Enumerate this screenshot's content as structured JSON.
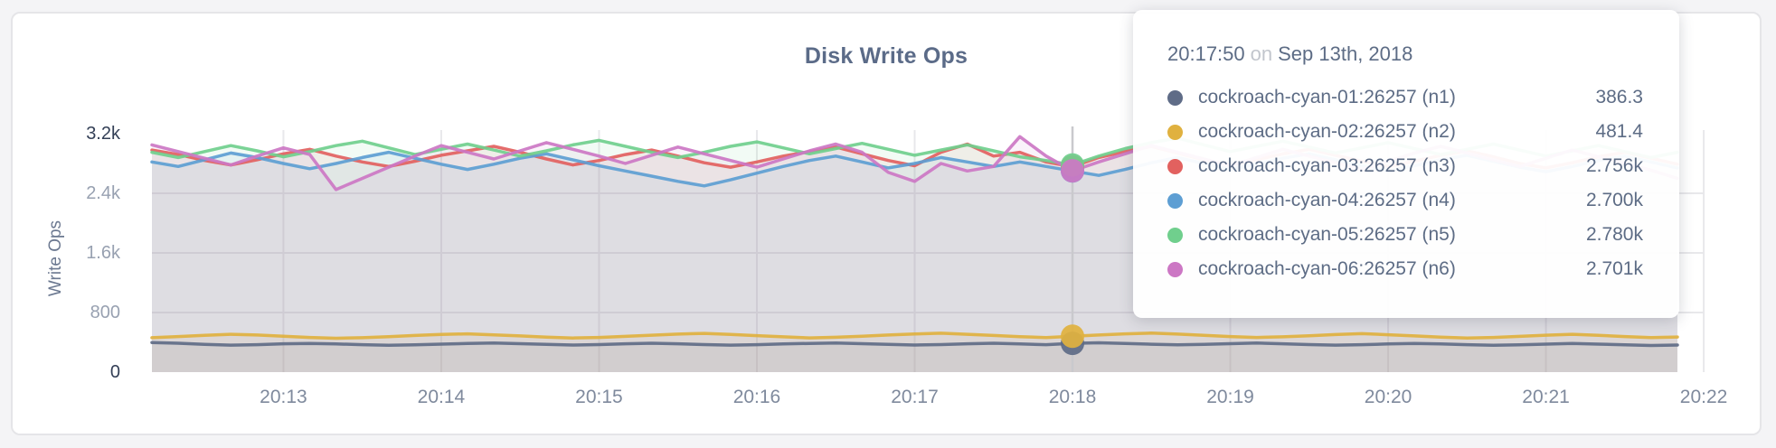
{
  "tooltip": {
    "time": "20:17:50",
    "connector": "on",
    "date": "Sep 13th, 2018"
  },
  "chart_data": {
    "type": "line",
    "title": "Disk Write Ops",
    "xlabel": "",
    "ylabel": "Write Ops",
    "grid": true,
    "legend_position": "tooltip",
    "ylim": [
      0,
      3250
    ],
    "x_tick_labels": [
      "20:13",
      "20:14",
      "20:15",
      "20:16",
      "20:17",
      "20:18",
      "20:19",
      "20:20",
      "20:21",
      "20:22"
    ],
    "y_ticks": [
      {
        "label": "0",
        "value": 0,
        "is_max_min": true
      },
      {
        "label": "800",
        "value": 800,
        "is_max_min": false
      },
      {
        "label": "1.6k",
        "value": 1600,
        "is_max_min": false
      },
      {
        "label": "2.4k",
        "value": 2400,
        "is_max_min": false
      },
      {
        "label": "3.2k",
        "value": 3200,
        "is_max_min": true
      }
    ],
    "sample_interval_seconds": 10,
    "hover_index": 35,
    "hover_time": "20:17:50",
    "series": [
      {
        "name": "cockroach-cyan-01:26257 (n1)",
        "color": "#5f6c87",
        "hover_value_label": "386.3",
        "values": [
          398,
          388,
          372,
          362,
          368,
          380,
          386,
          378,
          368,
          360,
          366,
          376,
          384,
          390,
          382,
          372,
          364,
          370,
          380,
          388,
          380,
          370,
          362,
          368,
          378,
          386,
          392,
          382,
          372,
          364,
          370,
          380,
          388,
          378,
          368,
          386.3,
          394,
          384,
          374,
          366,
          372,
          382,
          390,
          380,
          370,
          362,
          368,
          378,
          386,
          378,
          368,
          360,
          366,
          376,
          384,
          376,
          366,
          358,
          364
        ]
      },
      {
        "name": "cockroach-cyan-02:26257 (n2)",
        "color": "#e0b13f",
        "hover_value_label": "481.4",
        "values": [
          462,
          478,
          495,
          508,
          498,
          482,
          466,
          454,
          462,
          476,
          492,
          506,
          514,
          500,
          486,
          470,
          458,
          466,
          480,
          496,
          510,
          520,
          506,
          490,
          474,
          460,
          468,
          482,
          498,
          512,
          522,
          508,
          492,
          476,
          464,
          481.4,
          498,
          514,
          524,
          510,
          494,
          478,
          466,
          474,
          488,
          504,
          516,
          502,
          486,
          470,
          458,
          466,
          480,
          496,
          508,
          494,
          478,
          464,
          472
        ]
      },
      {
        "name": "cockroach-cyan-03:26257 (n3)",
        "color": "#e2615f",
        "hover_value_label": "2.756k",
        "values": [
          2980,
          2920,
          2840,
          2780,
          2850,
          2930,
          2990,
          2900,
          2820,
          2760,
          2830,
          2910,
          2970,
          3030,
          2950,
          2860,
          2780,
          2840,
          2920,
          2980,
          2900,
          2810,
          2750,
          2820,
          2900,
          2960,
          3020,
          2930,
          2840,
          2770,
          2950,
          3060,
          2900,
          2950,
          2820,
          2756,
          2880,
          2960,
          3030,
          2940,
          2850,
          2780,
          2850,
          2930,
          2990,
          2910,
          2830,
          2760,
          2830,
          2910,
          2970,
          2890,
          2800,
          2740,
          2810,
          2890,
          2950,
          2870,
          2790
        ]
      },
      {
        "name": "cockroach-cyan-04:26257 (n4)",
        "color": "#5d9ed3",
        "hover_value_label": "2.700k",
        "values": [
          2820,
          2760,
          2850,
          2940,
          2880,
          2800,
          2730,
          2800,
          2880,
          2950,
          2870,
          2790,
          2720,
          2790,
          2870,
          2930,
          2850,
          2770,
          2700,
          2630,
          2560,
          2500,
          2580,
          2670,
          2760,
          2840,
          2900,
          2820,
          2740,
          2800,
          2880,
          2820,
          2760,
          2820,
          2760,
          2700,
          2640,
          2720,
          2810,
          2880,
          2800,
          2720,
          2790,
          2870,
          2930,
          2850,
          2770,
          2700,
          2770,
          2850,
          2910,
          2830,
          2750,
          2690,
          2760,
          2840,
          2900,
          2820,
          2740
        ]
      },
      {
        "name": "cockroach-cyan-05:26257 (n5)",
        "color": "#70cf8d",
        "hover_value_label": "2.780k",
        "values": [
          2950,
          2880,
          2960,
          3040,
          2970,
          2890,
          2960,
          3040,
          3100,
          3010,
          2920,
          2990,
          3060,
          2980,
          2900,
          2970,
          3050,
          3110,
          3030,
          2950,
          2880,
          2950,
          3030,
          3090,
          3010,
          2930,
          3000,
          3070,
          2990,
          2910,
          2980,
          3050,
          2970,
          2890,
          2840,
          2780,
          2900,
          3000,
          3080,
          3140,
          3050,
          2960,
          3030,
          3100,
          3020,
          2940,
          3010,
          3080,
          3000,
          2920,
          2990,
          3060,
          2980,
          2900,
          2970,
          3040,
          2960,
          2880,
          2950
        ]
      },
      {
        "name": "cockroach-cyan-06:26257 (n6)",
        "color": "#cc77c4",
        "hover_value_label": "2.701k",
        "values": [
          3050,
          2960,
          2870,
          2780,
          2900,
          3010,
          2920,
          2450,
          2600,
          2750,
          2900,
          3040,
          2950,
          2860,
          2970,
          3080,
          2990,
          2900,
          2800,
          2910,
          3020,
          2930,
          2840,
          2750,
          2860,
          2970,
          3060,
          2950,
          2680,
          2560,
          2800,
          2700,
          2760,
          3160,
          2900,
          2701,
          2820,
          2930,
          3040,
          2950,
          2860,
          2770,
          2880,
          2990,
          2900,
          2810,
          2720,
          2830,
          2940,
          3030,
          2940,
          2850,
          2760,
          2870,
          2980,
          2890,
          2800,
          2710,
          2600
        ]
      }
    ]
  },
  "colors": {
    "page_background": "#f4f4f6",
    "card_background": "#ffffff",
    "grid_line": "#e8e8eb",
    "hover_line": "#c9c9cd",
    "title_text": "#5b6b88",
    "axis_text": "#7f8a9d",
    "axis_maxmin_text": "#333f56",
    "tooltip_text": "#5d6c85"
  }
}
